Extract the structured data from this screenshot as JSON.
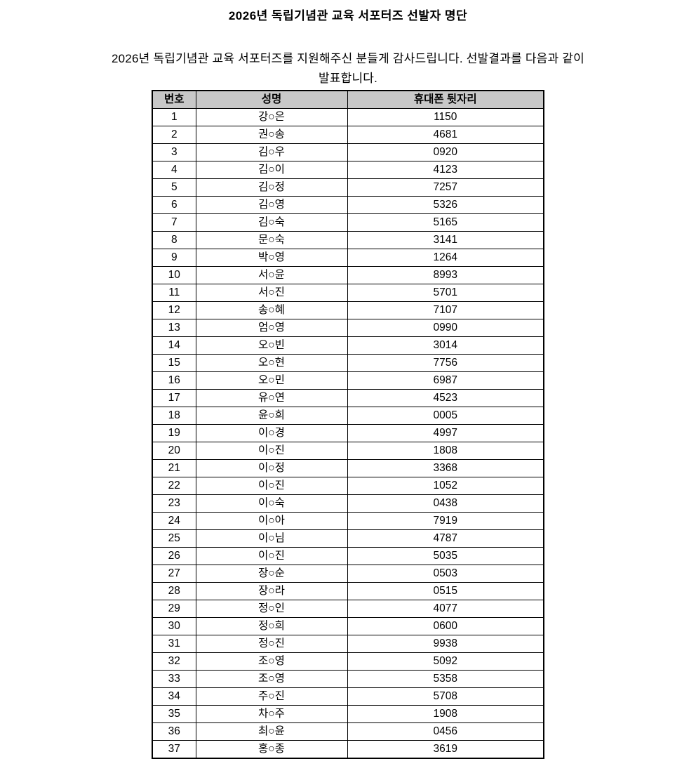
{
  "page": {
    "title": "2026년 독립기념관 교육 서포터즈 선발자 명단",
    "intro": "2026년 독립기념관 교육 서포터즈를 지원해주신 분들게 감사드립니다. 선발결과를 다음과 같이 발표합니다."
  },
  "table": {
    "headers": [
      "번호",
      "성명",
      "휴대폰 뒷자리"
    ],
    "header_bg": "#c8c8c8",
    "border_color": "#000000",
    "rows": [
      {
        "no": "1",
        "name": "강○은",
        "phone": "1150"
      },
      {
        "no": "2",
        "name": "권○송",
        "phone": "4681"
      },
      {
        "no": "3",
        "name": "김○우",
        "phone": "0920"
      },
      {
        "no": "4",
        "name": "김○이",
        "phone": "4123"
      },
      {
        "no": "5",
        "name": "김○정",
        "phone": "7257"
      },
      {
        "no": "6",
        "name": "김○영",
        "phone": "5326"
      },
      {
        "no": "7",
        "name": "김○숙",
        "phone": "5165"
      },
      {
        "no": "8",
        "name": "문○숙",
        "phone": "3141"
      },
      {
        "no": "9",
        "name": "박○영",
        "phone": "1264"
      },
      {
        "no": "10",
        "name": "서○윤",
        "phone": "8993"
      },
      {
        "no": "11",
        "name": "서○진",
        "phone": "5701"
      },
      {
        "no": "12",
        "name": "송○혜",
        "phone": "7107"
      },
      {
        "no": "13",
        "name": "엄○영",
        "phone": "0990"
      },
      {
        "no": "14",
        "name": "오○빈",
        "phone": "3014"
      },
      {
        "no": "15",
        "name": "오○현",
        "phone": "7756"
      },
      {
        "no": "16",
        "name": "오○민",
        "phone": "6987"
      },
      {
        "no": "17",
        "name": "유○연",
        "phone": "4523"
      },
      {
        "no": "18",
        "name": "윤○희",
        "phone": "0005"
      },
      {
        "no": "19",
        "name": "이○경",
        "phone": "4997"
      },
      {
        "no": "20",
        "name": "이○진",
        "phone": "1808"
      },
      {
        "no": "21",
        "name": "이○정",
        "phone": "3368"
      },
      {
        "no": "22",
        "name": "이○진",
        "phone": "1052"
      },
      {
        "no": "23",
        "name": "이○숙",
        "phone": "0438"
      },
      {
        "no": "24",
        "name": "이○아",
        "phone": "7919"
      },
      {
        "no": "25",
        "name": "이○님",
        "phone": "4787"
      },
      {
        "no": "26",
        "name": "이○진",
        "phone": "5035"
      },
      {
        "no": "27",
        "name": "장○순",
        "phone": "0503"
      },
      {
        "no": "28",
        "name": "장○라",
        "phone": "0515"
      },
      {
        "no": "29",
        "name": "정○인",
        "phone": "4077"
      },
      {
        "no": "30",
        "name": "정○희",
        "phone": "0600"
      },
      {
        "no": "31",
        "name": "정○진",
        "phone": "9938"
      },
      {
        "no": "32",
        "name": "조○영",
        "phone": "5092"
      },
      {
        "no": "33",
        "name": "조○영",
        "phone": "5358"
      },
      {
        "no": "34",
        "name": "주○진",
        "phone": "5708"
      },
      {
        "no": "35",
        "name": "차○주",
        "phone": "1908"
      },
      {
        "no": "36",
        "name": "최○윤",
        "phone": "0456"
      },
      {
        "no": "37",
        "name": "홍○종",
        "phone": "3619"
      }
    ]
  }
}
